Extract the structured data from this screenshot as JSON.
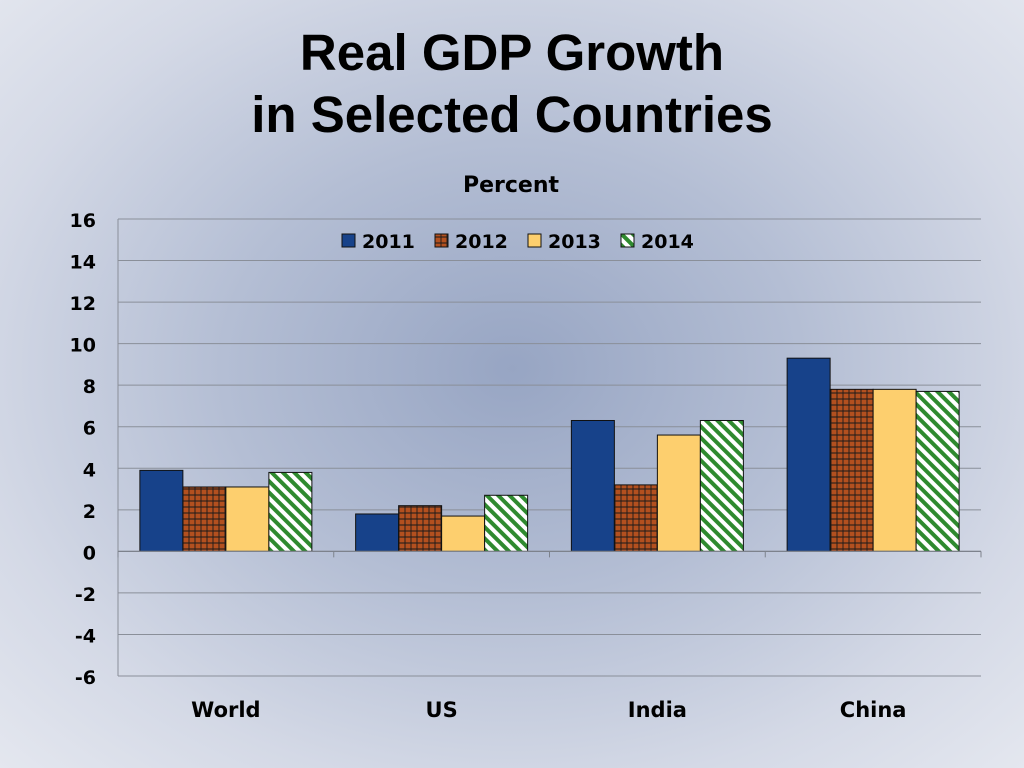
{
  "title": {
    "line1": "Real GDP Growth",
    "line2": "in Selected Countries"
  },
  "chart_data": {
    "type": "bar",
    "ylabel": "Percent",
    "xlabel": "",
    "categories": [
      "World",
      "US",
      "India",
      "China"
    ],
    "series": [
      {
        "name": "2011",
        "values": [
          3.9,
          1.8,
          6.3,
          9.3
        ],
        "color": "#17428a",
        "pattern": "solid"
      },
      {
        "name": "2012",
        "values": [
          3.1,
          2.2,
          3.2,
          7.8
        ],
        "color": "#b3501f",
        "pattern": "grid"
      },
      {
        "name": "2013",
        "values": [
          3.1,
          1.7,
          5.6,
          7.8
        ],
        "color": "#fdcf6e",
        "pattern": "solid"
      },
      {
        "name": "2014",
        "values": [
          3.8,
          2.7,
          6.3,
          7.7
        ],
        "color": "#2f8a2f",
        "pattern": "diagonal"
      }
    ],
    "ylim": [
      -6,
      16
    ],
    "yticks": [
      16,
      14,
      12,
      10,
      8,
      6,
      4,
      2,
      0,
      -2,
      -4,
      -6
    ],
    "grid": true,
    "legend": "top-center"
  }
}
